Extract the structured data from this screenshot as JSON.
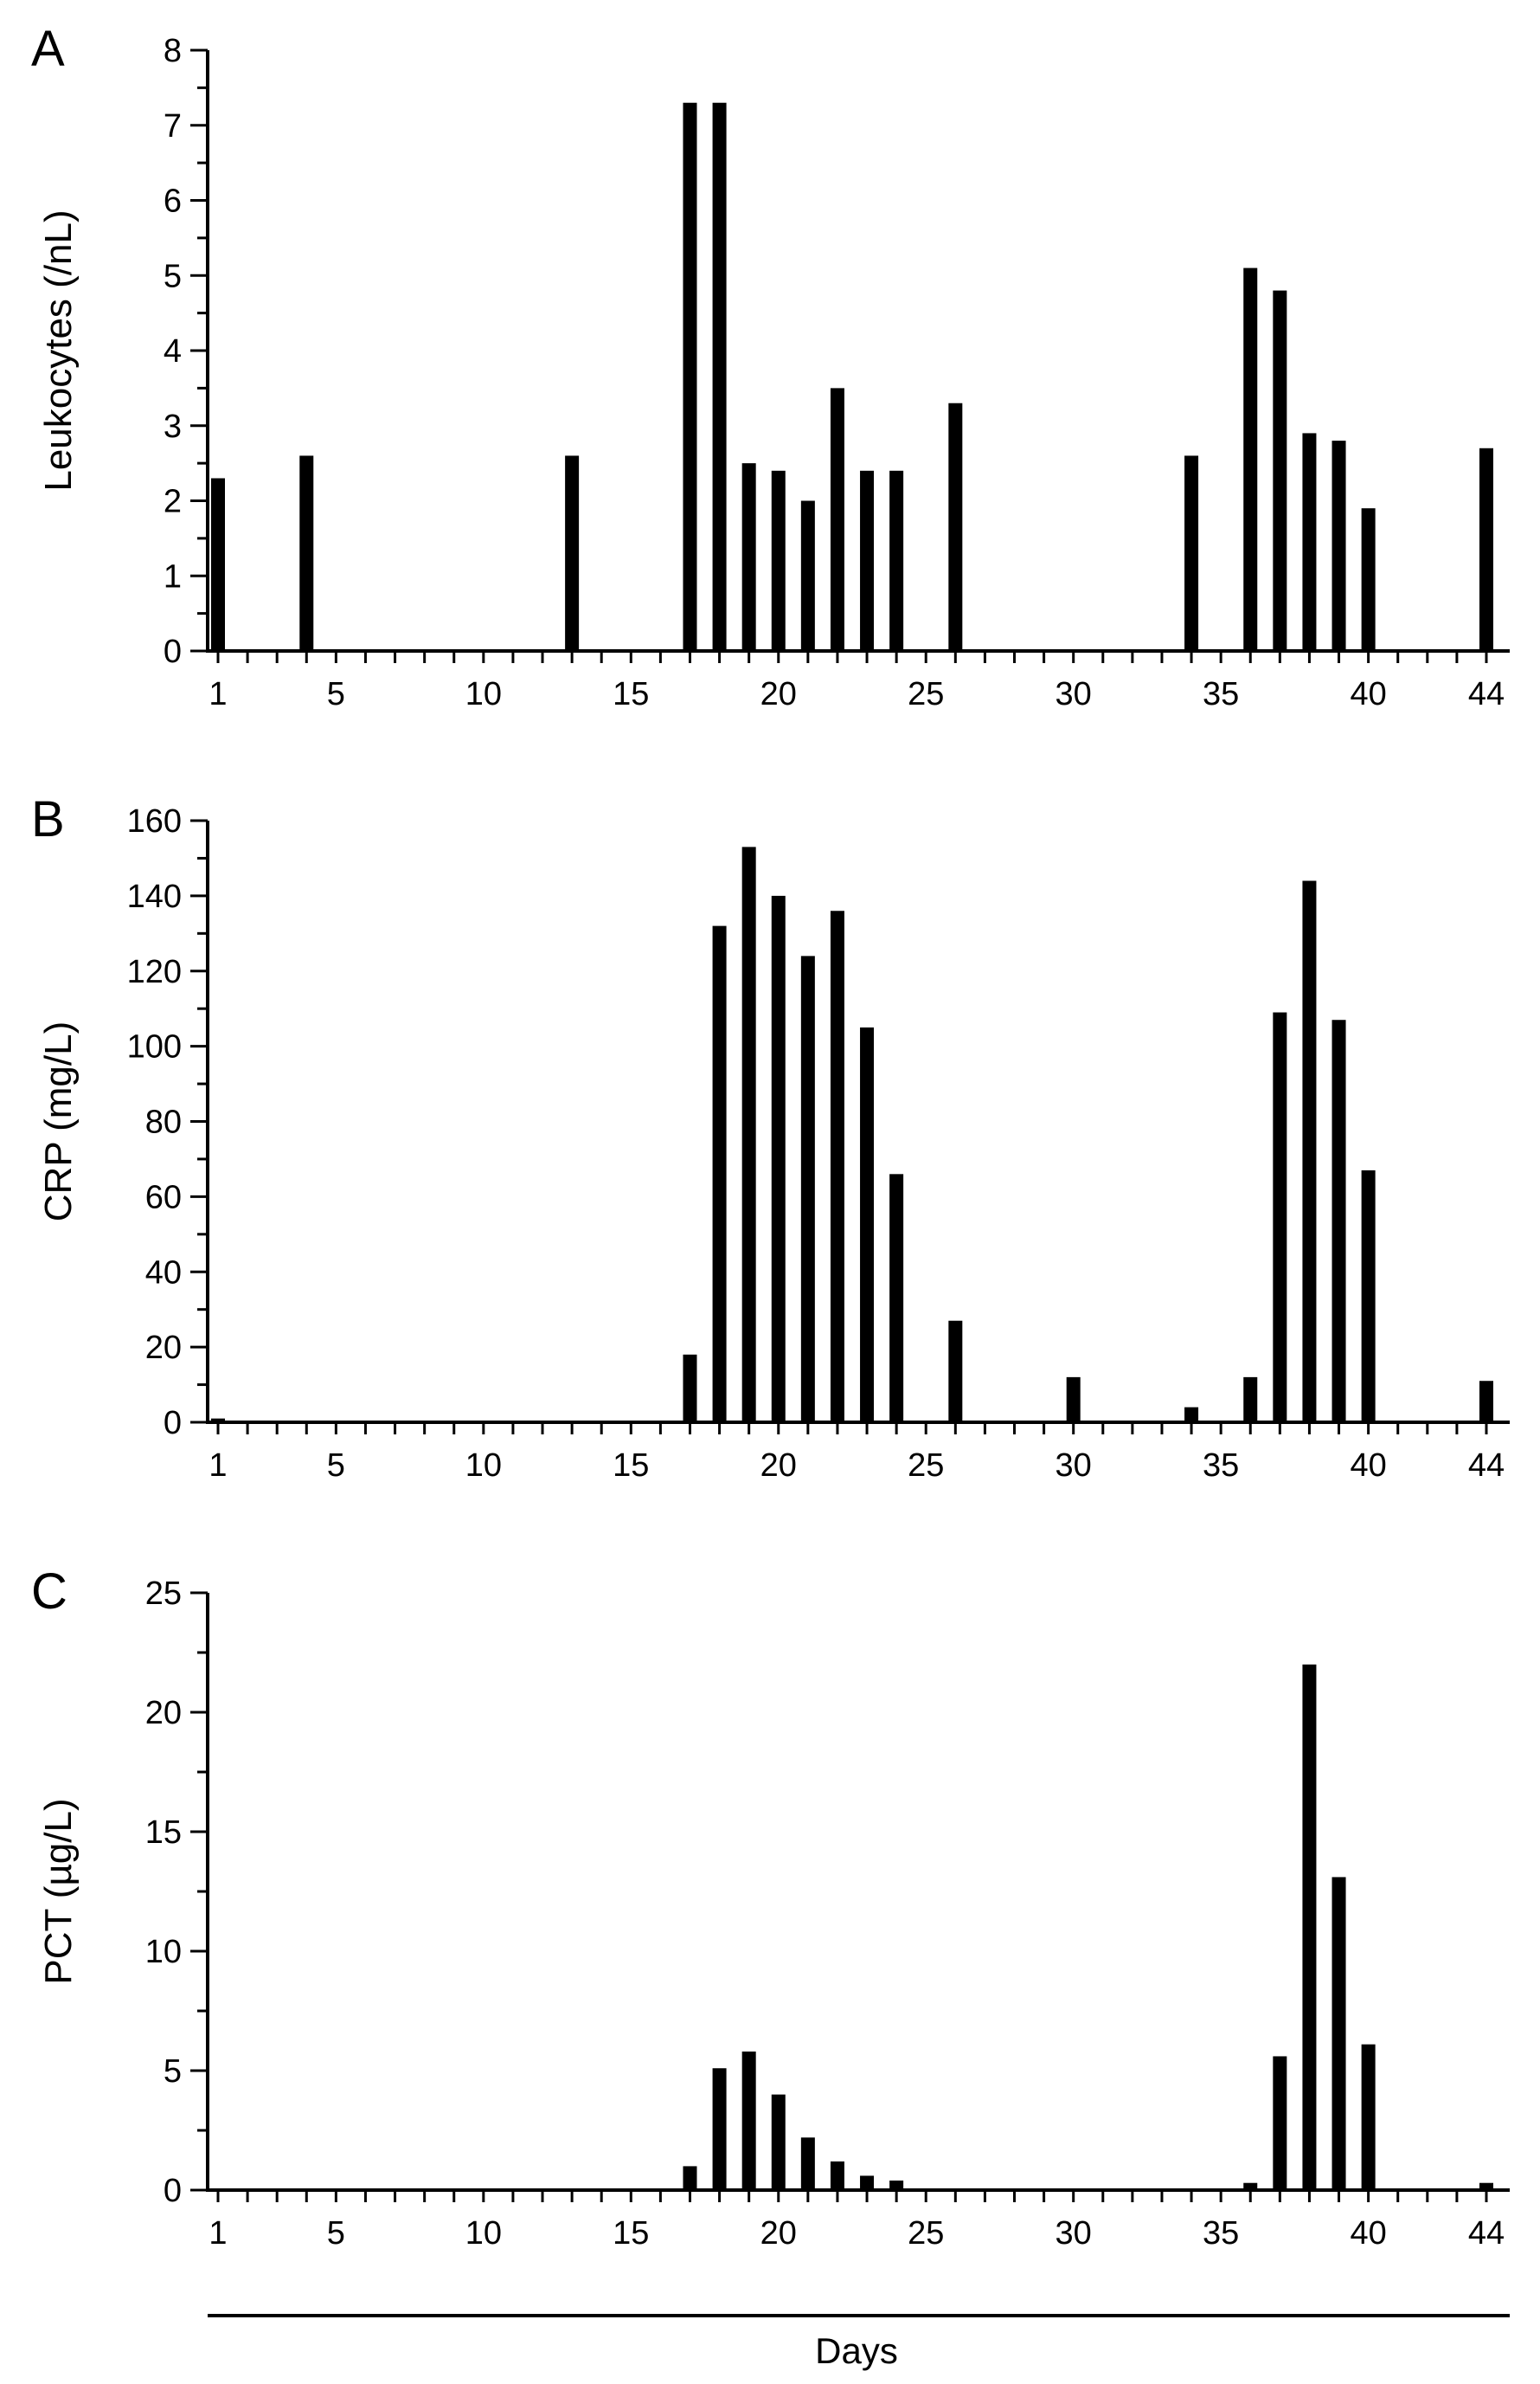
{
  "chart_data": [
    {
      "type": "bar",
      "panel_label": "A",
      "ylabel": "Leukocytes (/nL)",
      "xlabel": "",
      "ylim": [
        0,
        8
      ],
      "y_ticks": [
        0,
        1,
        2,
        3,
        4,
        5,
        6,
        7,
        8
      ],
      "x_range": [
        1,
        44
      ],
      "x_tick_labels": [
        1,
        5,
        10,
        15,
        20,
        25,
        30,
        35,
        40,
        44
      ],
      "grid": false,
      "series": [
        {
          "name": "Leukocytes",
          "x": [
            1,
            4,
            13,
            17,
            18,
            19,
            20,
            21,
            22,
            23,
            24,
            26,
            34,
            36,
            37,
            38,
            39,
            40,
            44
          ],
          "values": [
            2.3,
            2.6,
            2.6,
            7.3,
            7.3,
            2.5,
            2.4,
            2.0,
            3.5,
            2.4,
            2.4,
            3.3,
            2.6,
            5.1,
            4.8,
            2.9,
            2.8,
            1.9,
            2.7
          ]
        }
      ]
    },
    {
      "type": "bar",
      "panel_label": "B",
      "ylabel": "CRP (mg/L)",
      "xlabel": "",
      "ylim": [
        0,
        160
      ],
      "y_ticks": [
        0,
        20,
        40,
        60,
        80,
        100,
        120,
        140,
        160
      ],
      "x_range": [
        1,
        44
      ],
      "x_tick_labels": [
        1,
        5,
        10,
        15,
        20,
        25,
        30,
        35,
        40,
        44
      ],
      "grid": false,
      "series": [
        {
          "name": "CRP",
          "x": [
            1,
            17,
            18,
            19,
            20,
            21,
            22,
            23,
            24,
            26,
            30,
            34,
            36,
            37,
            38,
            39,
            40,
            44
          ],
          "values": [
            1,
            18,
            132,
            153,
            140,
            124,
            136,
            105,
            66,
            27,
            12,
            4,
            12,
            109,
            144,
            107,
            67,
            11
          ]
        }
      ]
    },
    {
      "type": "bar",
      "panel_label": "C",
      "ylabel": "PCT (µg/L)",
      "xlabel": "Days",
      "ylim": [
        0,
        25
      ],
      "y_ticks": [
        0,
        5,
        10,
        15,
        20,
        25
      ],
      "x_range": [
        1,
        44
      ],
      "x_tick_labels": [
        1,
        5,
        10,
        15,
        20,
        25,
        30,
        35,
        40,
        44
      ],
      "grid": false,
      "series": [
        {
          "name": "PCT",
          "x": [
            17,
            18,
            19,
            20,
            21,
            22,
            23,
            24,
            36,
            37,
            38,
            39,
            40,
            44
          ],
          "values": [
            1.0,
            5.1,
            5.8,
            4.0,
            2.2,
            1.2,
            0.6,
            0.4,
            0.3,
            5.6,
            22.0,
            13.1,
            6.1,
            0.3
          ]
        }
      ]
    }
  ]
}
